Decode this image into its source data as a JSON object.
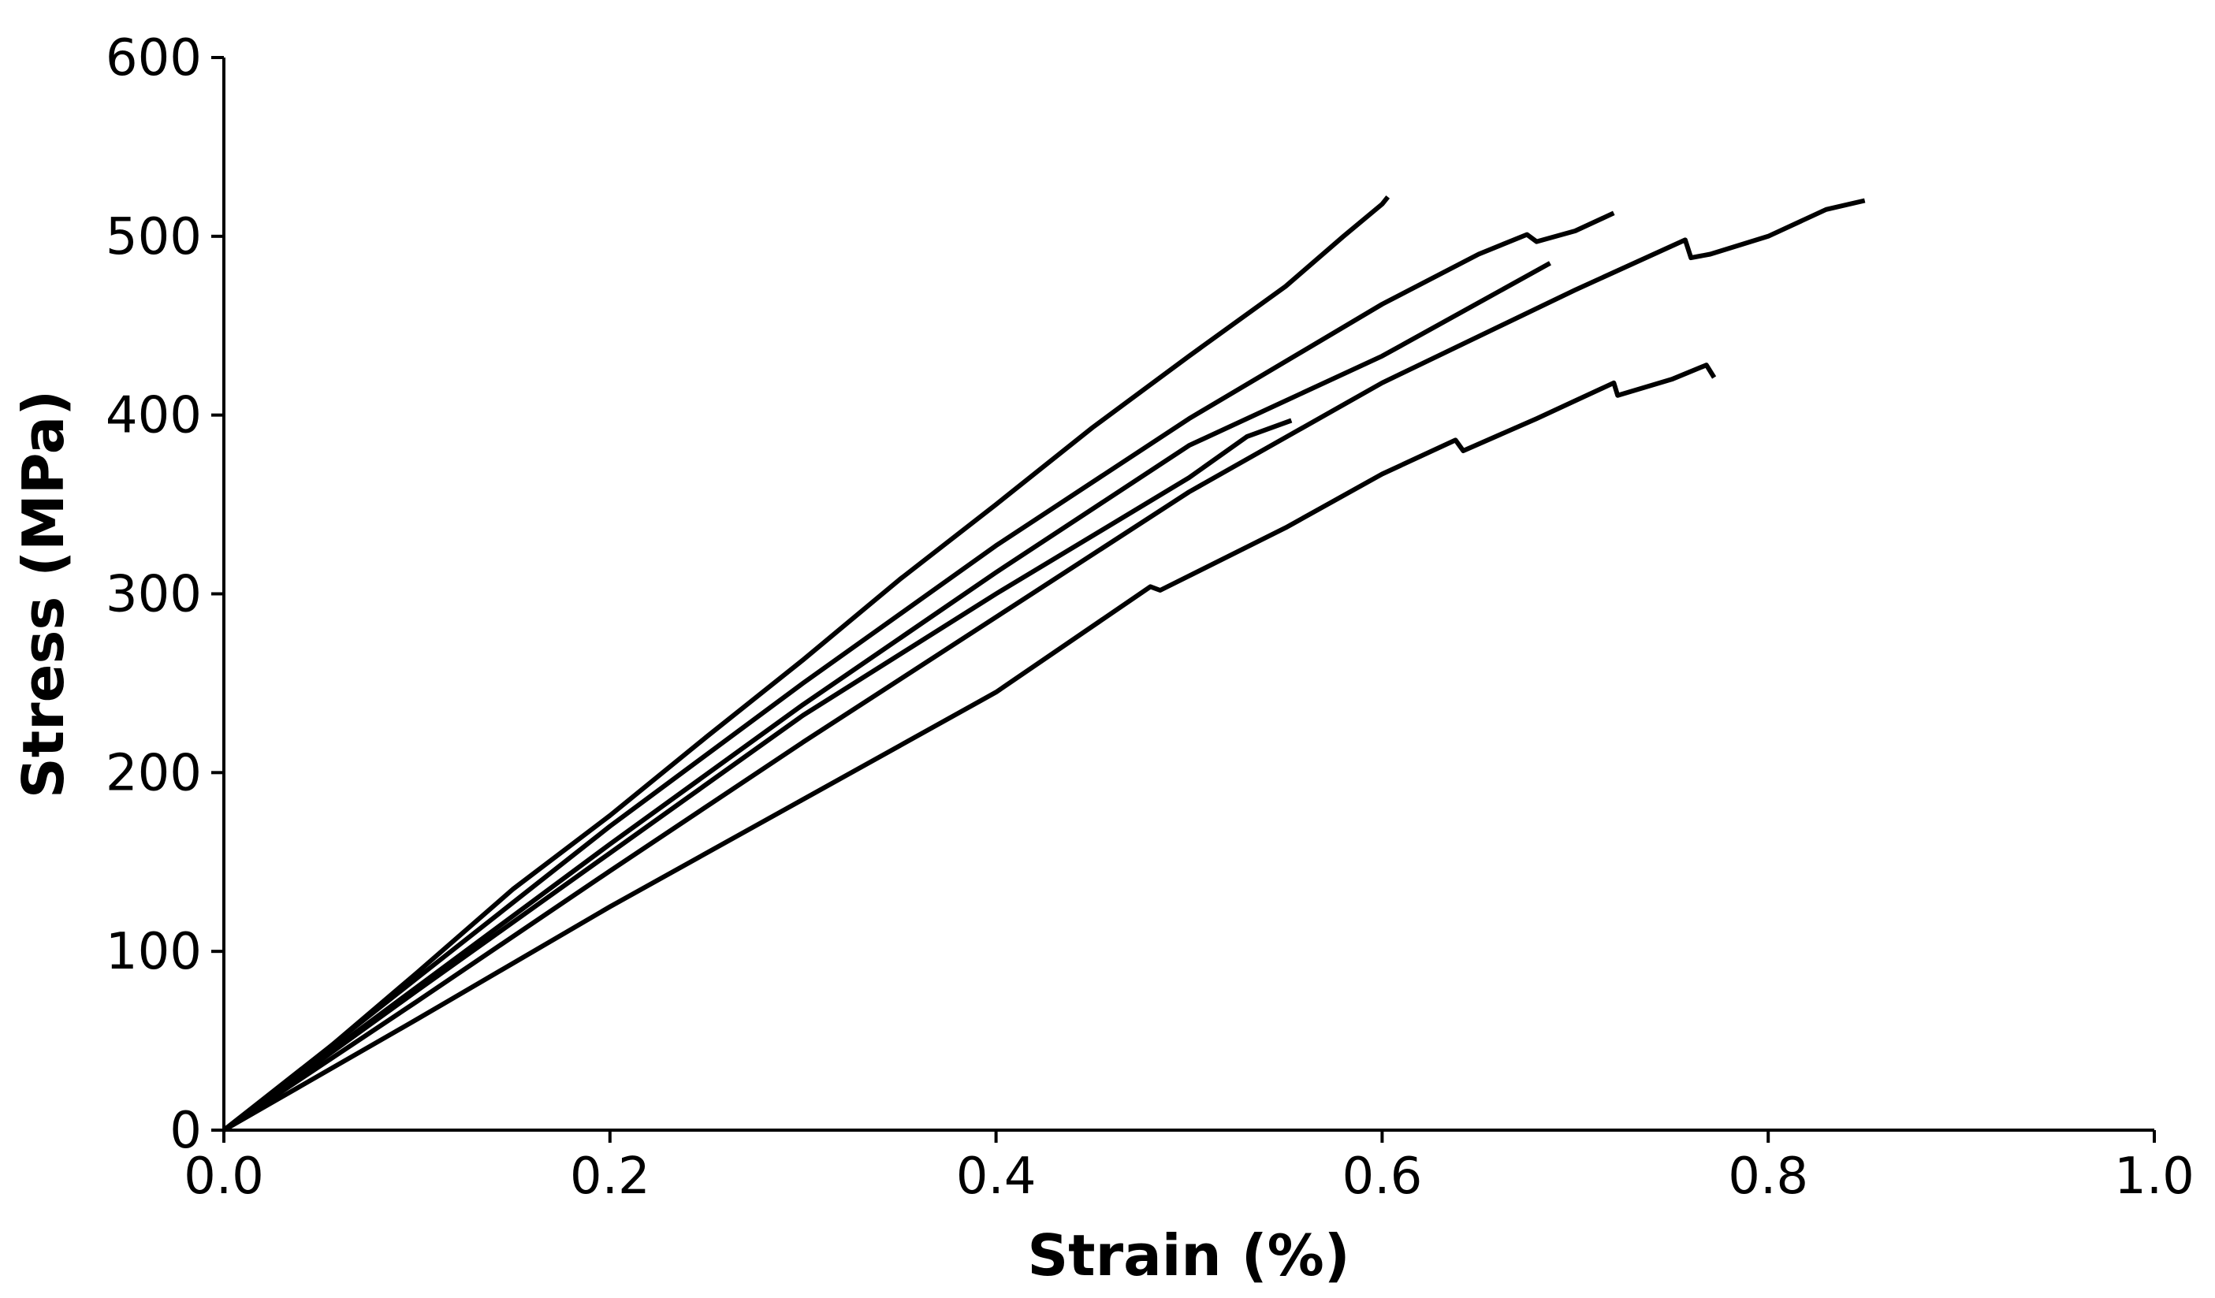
{
  "chart_data": {
    "type": "line",
    "title": "",
    "xlabel": "Strain (%)",
    "ylabel": "Stress (MPa)",
    "xlim": [
      0.0,
      1.0
    ],
    "ylim": [
      0,
      600
    ],
    "grid": false,
    "legend": "none",
    "line_color": "#000000",
    "xticks": [
      {
        "value": 0.0,
        "label": "0.0"
      },
      {
        "value": 0.2,
        "label": "0.2"
      },
      {
        "value": 0.4,
        "label": "0.4"
      },
      {
        "value": 0.6,
        "label": "0.6"
      },
      {
        "value": 0.8,
        "label": "0.8"
      },
      {
        "value": 1.0,
        "label": "1.0"
      }
    ],
    "yticks": [
      {
        "value": 0,
        "label": "0"
      },
      {
        "value": 100,
        "label": "100"
      },
      {
        "value": 200,
        "label": "200"
      },
      {
        "value": 300,
        "label": "300"
      },
      {
        "value": 400,
        "label": "400"
      },
      {
        "value": 500,
        "label": "500"
      },
      {
        "value": 600,
        "label": "600"
      }
    ],
    "series": [
      {
        "x": [
          0.0,
          0.05,
          0.1,
          0.15,
          0.2,
          0.25,
          0.3,
          0.35,
          0.4,
          0.45,
          0.5,
          0.55,
          0.58,
          0.6,
          0.603
        ],
        "y": [
          0,
          42,
          88,
          135,
          176,
          220,
          263,
          308,
          350,
          393,
          433,
          472,
          500,
          518,
          522
        ]
      },
      {
        "x": [
          0.0,
          0.1,
          0.2,
          0.3,
          0.4,
          0.5,
          0.6,
          0.65,
          0.675,
          0.68,
          0.7,
          0.72
        ],
        "y": [
          0,
          85,
          170,
          250,
          327,
          398,
          462,
          490,
          501,
          497,
          503,
          513
        ]
      },
      {
        "x": [
          0.0,
          0.1,
          0.2,
          0.3,
          0.4,
          0.5,
          0.6,
          0.687
        ],
        "y": [
          0,
          80,
          160,
          238,
          312,
          383,
          433,
          485
        ]
      },
      {
        "x": [
          0.0,
          0.1,
          0.2,
          0.3,
          0.4,
          0.5,
          0.53,
          0.553
        ],
        "y": [
          0,
          78,
          155,
          232,
          300,
          365,
          388,
          397
        ]
      },
      {
        "x": [
          0.0,
          0.1,
          0.2,
          0.3,
          0.4,
          0.5,
          0.6,
          0.7,
          0.757,
          0.76,
          0.77,
          0.8,
          0.83,
          0.85
        ],
        "y": [
          0,
          72,
          145,
          217,
          287,
          357,
          418,
          470,
          498,
          488,
          490,
          500,
          515,
          520
        ]
      },
      {
        "x": [
          0.0,
          0.1,
          0.2,
          0.3,
          0.4,
          0.48,
          0.485,
          0.55,
          0.6,
          0.638,
          0.642,
          0.68,
          0.72,
          0.722,
          0.75,
          0.768,
          0.772
        ],
        "y": [
          0,
          62,
          125,
          185,
          245,
          304,
          302,
          337,
          367,
          386,
          380,
          398,
          418,
          411,
          420,
          428,
          421
        ]
      }
    ]
  }
}
